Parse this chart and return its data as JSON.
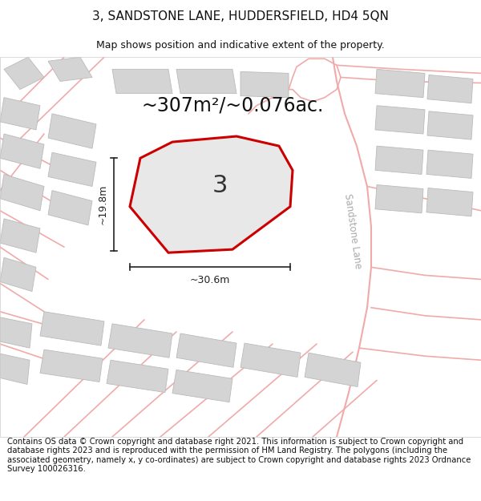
{
  "title": "3, SANDSTONE LANE, HUDDERSFIELD, HD4 5QN",
  "subtitle": "Map shows position and indicative extent of the property.",
  "footer": "Contains OS data © Crown copyright and database right 2021. This information is subject to Crown copyright and database rights 2023 and is reproduced with the permission of HM Land Registry. The polygons (including the associated geometry, namely x, y co-ordinates) are subject to Crown copyright and database rights 2023 Ordnance Survey 100026316.",
  "area_text": "~307m²/~0.076ac.",
  "label_number": "3",
  "dim_width": "~30.6m",
  "dim_height": "~19.8m",
  "road_label": "Sandstone Lane",
  "bg_color": "#f2f2f2",
  "plot_fill": "#e8e8e8",
  "plot_edge": "#cc0000",
  "road_line_color": "#f0aaaa",
  "building_fill": "#d4d4d4",
  "building_edge": "#bbbbbb",
  "dim_line_color": "#222222",
  "text_color": "#222222",
  "road_label_color": "#aaaaaa",
  "title_fontsize": 11,
  "subtitle_fontsize": 9,
  "footer_fontsize": 7.2,
  "area_fontsize": 17,
  "label_fontsize": 22,
  "dim_fontsize": 9
}
